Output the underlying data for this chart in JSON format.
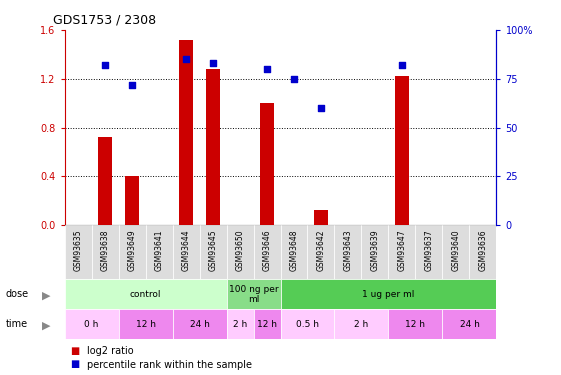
{
  "title": "GDS1753 / 2308",
  "samples": [
    "GSM93635",
    "GSM93638",
    "GSM93649",
    "GSM93641",
    "GSM93644",
    "GSM93645",
    "GSM93650",
    "GSM93646",
    "GSM93648",
    "GSM93642",
    "GSM93643",
    "GSM93639",
    "GSM93647",
    "GSM93637",
    "GSM93640",
    "GSM93636"
  ],
  "log2_ratio": [
    0.0,
    0.72,
    0.4,
    0.0,
    1.52,
    1.28,
    0.0,
    1.0,
    0.0,
    0.12,
    0.0,
    0.0,
    1.22,
    0.0,
    0.0,
    0.0
  ],
  "percentile": [
    null,
    82,
    72,
    null,
    85,
    83,
    null,
    80,
    75,
    60,
    null,
    null,
    82,
    null,
    null,
    null
  ],
  "ylim_left": [
    0,
    1.6
  ],
  "ylim_right": [
    0,
    100
  ],
  "yticks_left": [
    0,
    0.4,
    0.8,
    1.2,
    1.6
  ],
  "yticks_right": [
    0,
    25,
    50,
    75,
    100
  ],
  "bar_color": "#cc0000",
  "dot_color": "#0000cc",
  "dose_groups": [
    {
      "label": "control",
      "start": 0,
      "end": 6,
      "color": "#ccffcc"
    },
    {
      "label": "100 ng per\nml",
      "start": 6,
      "end": 8,
      "color": "#88dd88"
    },
    {
      "label": "1 ug per ml",
      "start": 8,
      "end": 16,
      "color": "#55cc55"
    }
  ],
  "time_groups": [
    {
      "label": "0 h",
      "start": 0,
      "end": 2,
      "color": "#ffccff"
    },
    {
      "label": "12 h",
      "start": 2,
      "end": 4,
      "color": "#ee88ee"
    },
    {
      "label": "24 h",
      "start": 4,
      "end": 6,
      "color": "#ee88ee"
    },
    {
      "label": "2 h",
      "start": 6,
      "end": 7,
      "color": "#ffccff"
    },
    {
      "label": "12 h",
      "start": 7,
      "end": 8,
      "color": "#ee88ee"
    },
    {
      "label": "0.5 h",
      "start": 8,
      "end": 10,
      "color": "#ffccff"
    },
    {
      "label": "2 h",
      "start": 10,
      "end": 12,
      "color": "#ffccff"
    },
    {
      "label": "12 h",
      "start": 12,
      "end": 14,
      "color": "#ee88ee"
    },
    {
      "label": "24 h",
      "start": 14,
      "end": 16,
      "color": "#ee88ee"
    }
  ],
  "dose_label": "dose",
  "time_label": "time",
  "legend_log2": "log2 ratio",
  "legend_pct": "percentile rank within the sample",
  "sample_bg": "#dddddd"
}
